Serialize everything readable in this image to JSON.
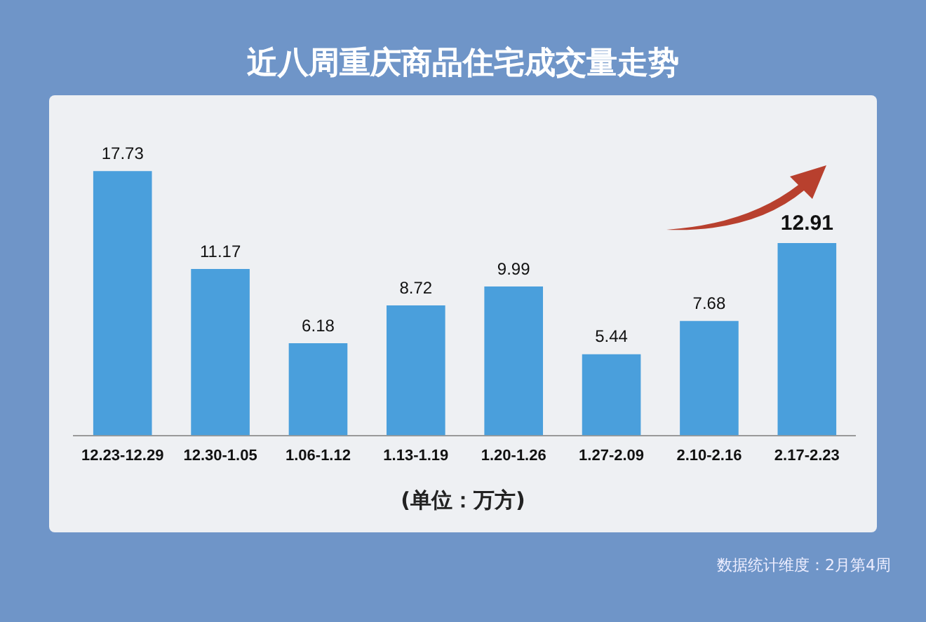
{
  "chart_data": {
    "type": "bar",
    "title": "近八周重庆商品住宅成交量走势",
    "xlabel": "(单位：万方)",
    "categories": [
      "12.23-12.29",
      "12.30-1.05",
      "1.06-1.12",
      "1.13-1.19",
      "1.20-1.26",
      "1.27-2.09",
      "2.10-2.16",
      "2.17-2.23"
    ],
    "values": [
      17.73,
      11.17,
      6.18,
      8.72,
      9.99,
      5.44,
      7.68,
      12.91
    ],
    "color": "#4a9fdc",
    "data_labels": true,
    "grid": false,
    "legend": false,
    "annotations": [
      "数据统计维度：2月第4周"
    ]
  }
}
